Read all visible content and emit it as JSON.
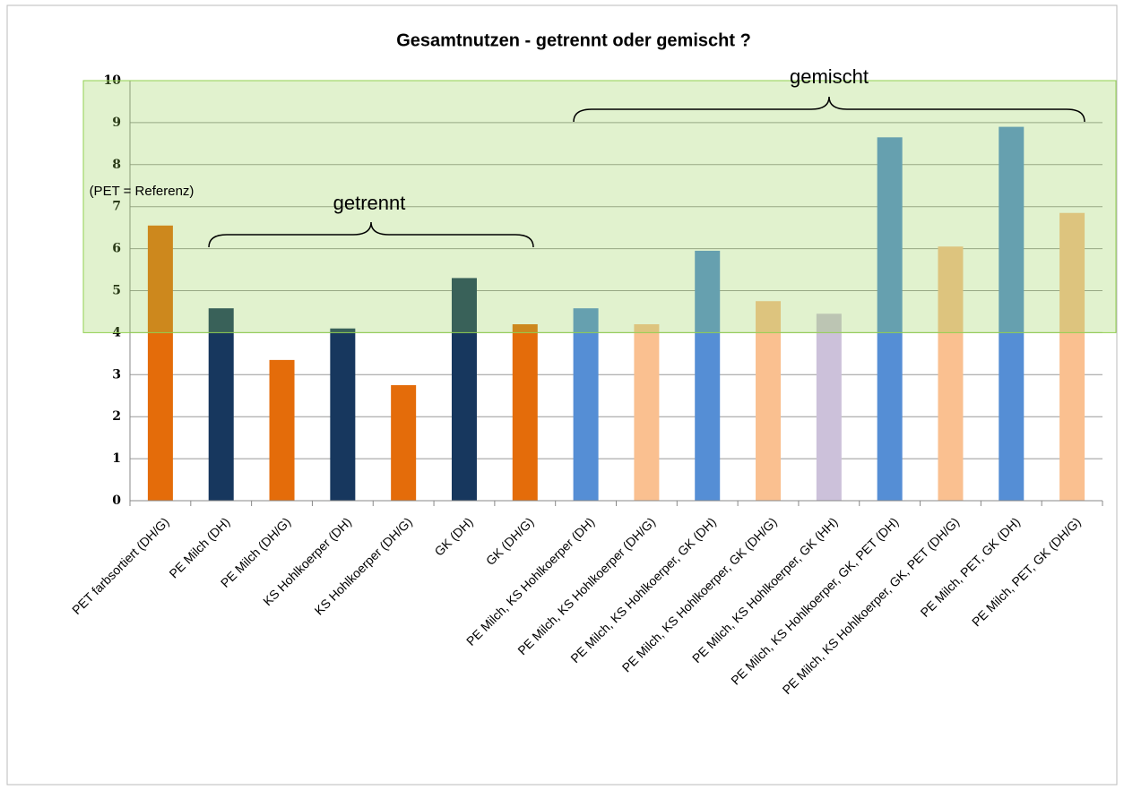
{
  "chart_data": {
    "type": "bar",
    "title": "Gesamtnutzen - getrennt oder gemischt ?",
    "categories": [
      "PET farbsortiert (DH/G)",
      "PE Milch (DH)",
      "PE Milch (DH/G)",
      "KS Hohlkoerper (DH)",
      "KS Hohlkoerper (DH/G)",
      "GK (DH)",
      "GK (DH/G)",
      "PE Milch, KS Hohlkoerper (DH)",
      "PE Milch, KS Hohlkoerper (DH/G)",
      "PE Milch, KS Hohlkoerper, GK (DH)",
      "PE Milch, KS Hohlkoerper, GK (DH/G)",
      "PE Milch, KS Hohlkoerper, GK (HH)",
      "PE Milch, KS Hohlkoerper, GK, PET (DH)",
      "PE Milch, KS Hohlkoerper, GK, PET (DH/G)",
      "PE Milch, PET, GK (DH)",
      "PE Milch, PET, GK (DH/G)"
    ],
    "values": [
      6.55,
      4.58,
      3.35,
      4.1,
      2.75,
      5.3,
      4.2,
      4.58,
      4.2,
      5.95,
      4.75,
      4.45,
      8.65,
      6.05,
      8.9,
      6.85
    ],
    "colors": [
      "#e46c0a",
      "#17375e",
      "#e46c0a",
      "#17375e",
      "#e46c0a",
      "#17375e",
      "#e46c0a",
      "#558ed5",
      "#fac090",
      "#558ed5",
      "#fac090",
      "#ccc1da",
      "#558ed5",
      "#fac090",
      "#558ed5",
      "#fac090"
    ],
    "ylim": [
      0,
      10
    ],
    "yticks": [
      0,
      1,
      2,
      3,
      4,
      5,
      6,
      7,
      8,
      9,
      10
    ],
    "grid": true,
    "highlight": {
      "from": 4,
      "to": 10,
      "color": "#92d050"
    },
    "annotations": [
      "getrennt",
      "gemischt",
      "(PET = Referenz)"
    ]
  }
}
